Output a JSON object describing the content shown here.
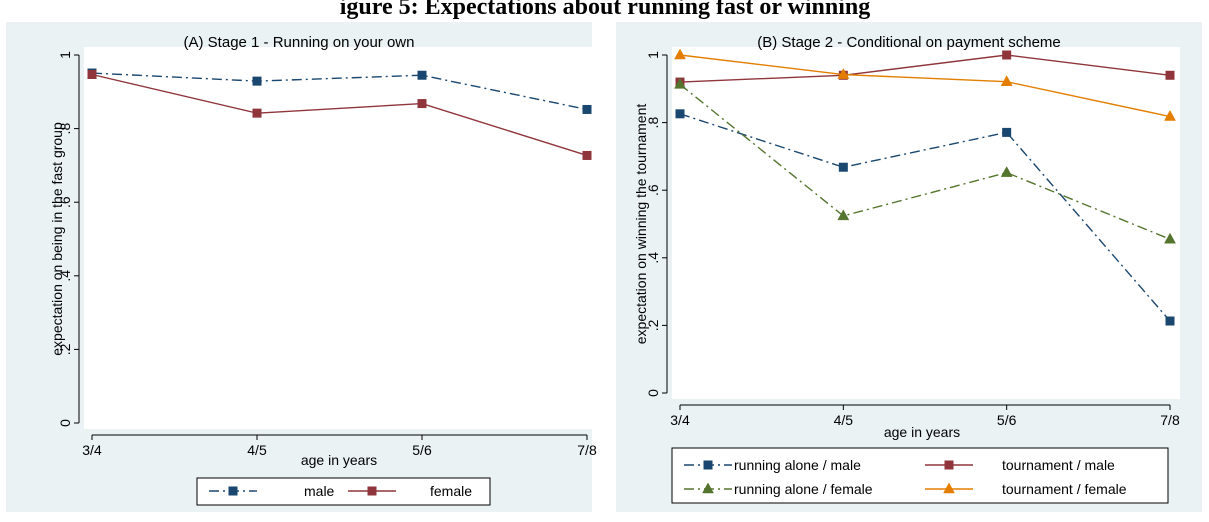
{
  "figure": {
    "title": "igure 5: Expectations about running fast or winning"
  },
  "chart_data": [
    {
      "type": "line",
      "title": "(A) Stage 1 - Running on your own",
      "xlabel": "age in years",
      "ylabel": "expectation on being in the fast group",
      "categories": [
        "3/4",
        "4/5",
        "5/6",
        "7/8"
      ],
      "ylim": [
        0,
        1
      ],
      "yticks": [
        "0",
        ".2",
        ".4",
        ".6",
        ".8",
        "1"
      ],
      "legend_position": "bottom",
      "series": [
        {
          "name": "male",
          "values": [
            0.951,
            0.929,
            0.945,
            0.852
          ],
          "color": "#1a476f",
          "dash": "dash-dot",
          "marker": "square"
        },
        {
          "name": "female",
          "values": [
            0.947,
            0.842,
            0.868,
            0.727
          ],
          "color": "#90353b",
          "dash": "solid",
          "marker": "square"
        }
      ]
    },
    {
      "type": "line",
      "title": "(B) Stage 2 - Conditional on payment scheme",
      "xlabel": "age in years",
      "ylabel": "expectation on winning the tournament",
      "categories": [
        "3/4",
        "4/5",
        "5/6",
        "7/8"
      ],
      "ylim": [
        0,
        1
      ],
      "yticks": [
        "0",
        ".2",
        ".4",
        ".6",
        ".8",
        "1"
      ],
      "legend_position": "bottom",
      "series": [
        {
          "name": "running alone / male",
          "values": [
            0.826,
            0.668,
            0.771,
            0.213
          ],
          "color": "#1a476f",
          "dash": "dash-dot",
          "marker": "square"
        },
        {
          "name": "tournament / male",
          "values": [
            0.92,
            0.94,
            1.0,
            0.94
          ],
          "color": "#90353b",
          "dash": "solid",
          "marker": "square"
        },
        {
          "name": "running alone / female",
          "values": [
            0.913,
            0.524,
            0.652,
            0.455
          ],
          "color": "#55752f",
          "dash": "dash-dot",
          "marker": "triangle"
        },
        {
          "name": "tournament / female",
          "values": [
            1.0,
            0.942,
            0.921,
            0.818
          ],
          "color": "#e37e00",
          "dash": "solid",
          "marker": "triangle"
        }
      ]
    }
  ]
}
